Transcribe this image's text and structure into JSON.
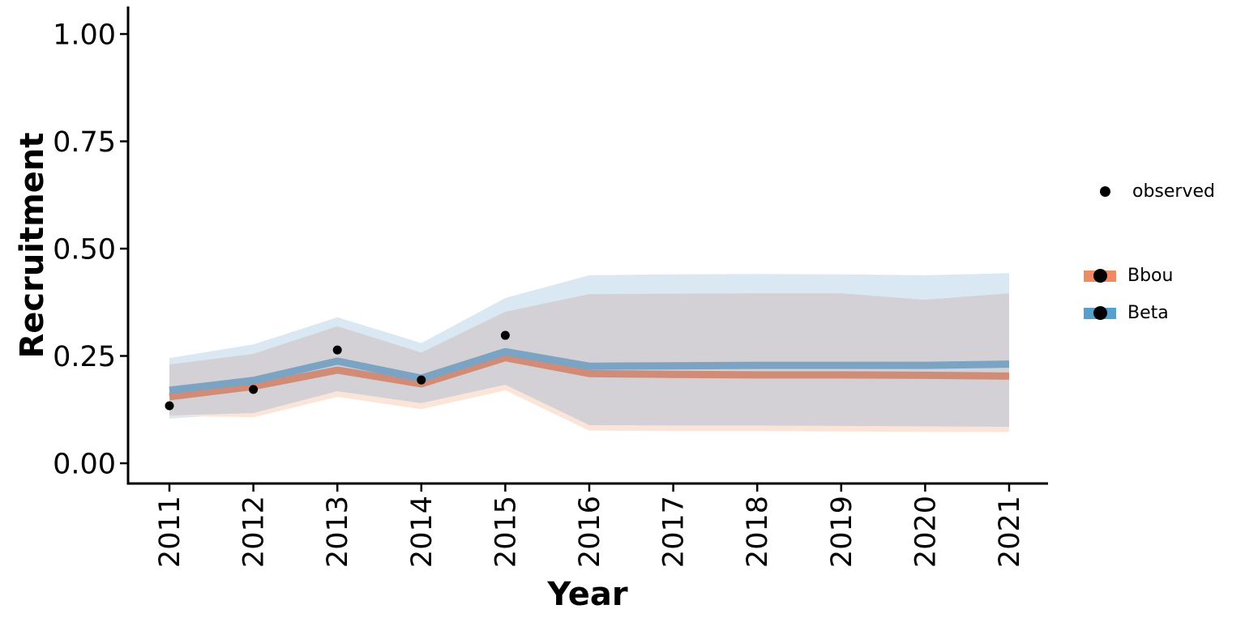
{
  "chart_data": {
    "type": "line",
    "title": "",
    "xlabel": "Year",
    "ylabel": "Recruitment",
    "x": [
      2011,
      2012,
      2013,
      2014,
      2015,
      2016,
      2017,
      2018,
      2019,
      2020,
      2021
    ],
    "xtick_labels": [
      "2011",
      "2012",
      "2013",
      "2014",
      "2015",
      "2016",
      "2017",
      "2018",
      "2019",
      "2020",
      "2021"
    ],
    "yticks": [
      0.0,
      0.25,
      0.5,
      0.75,
      1.0
    ],
    "ytick_labels": [
      "0.00",
      "0.25",
      "0.50",
      "0.75",
      "1.00"
    ],
    "ylim": [
      0,
      1
    ],
    "xlim": [
      2010.5,
      2021.5
    ],
    "grid": false,
    "legend_position": "right-outside",
    "observed": {
      "label": "observed",
      "years": [
        2011,
        2012,
        2013,
        2014,
        2015
      ],
      "values": [
        0.134,
        0.172,
        0.264,
        0.194,
        0.298
      ],
      "color": "#000000"
    },
    "series": [
      {
        "name": "Bbou",
        "legend_color": "#EF8A65",
        "line_color": "#D08C76",
        "ribbon_color": "#FAE5D8",
        "mean": [
          0.155,
          0.179,
          0.217,
          0.185,
          0.246,
          0.209,
          0.207,
          0.206,
          0.206,
          0.205,
          0.203
        ],
        "lower": [
          0.111,
          0.107,
          0.155,
          0.126,
          0.17,
          0.076,
          0.075,
          0.075,
          0.074,
          0.073,
          0.073
        ],
        "upper": [
          0.23,
          0.255,
          0.319,
          0.258,
          0.353,
          0.394,
          0.395,
          0.396,
          0.396,
          0.381,
          0.396
        ]
      },
      {
        "name": "Beta",
        "legend_color": "#57A0CD",
        "line_color": "#7BA3C3",
        "ribbon_color": "#D9E8F3",
        "mean": [
          0.17,
          0.193,
          0.238,
          0.198,
          0.26,
          0.226,
          0.227,
          0.228,
          0.228,
          0.228,
          0.231
        ],
        "lower": [
          0.104,
          0.117,
          0.168,
          0.14,
          0.183,
          0.089,
          0.088,
          0.088,
          0.087,
          0.086,
          0.085
        ],
        "upper": [
          0.245,
          0.277,
          0.34,
          0.28,
          0.385,
          0.438,
          0.44,
          0.441,
          0.44,
          0.438,
          0.443
        ]
      }
    ],
    "ribbon_overlap_color": "#D3D1D6",
    "axis_color": "#000000"
  },
  "legend": {
    "observed_label": "observed",
    "bbou_label": "Bbou",
    "beta_label": "Beta"
  }
}
